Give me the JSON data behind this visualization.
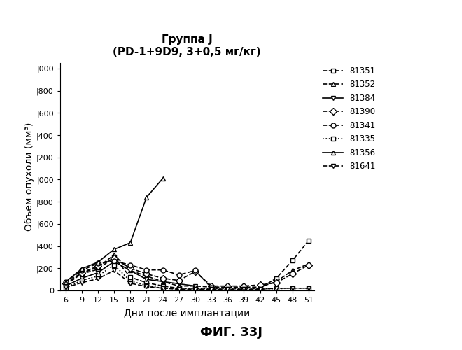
{
  "title_line1": "Группа J",
  "title_line2": "(PD-1+9D9, 3+0,5 мг/кг)",
  "xlabel": "Дни после имплантации",
  "ylabel": "Объем опухоли (мм³)",
  "caption": "ФИГ. 33J",
  "xticks": [
    6,
    9,
    12,
    15,
    18,
    21,
    24,
    27,
    30,
    33,
    36,
    39,
    42,
    45,
    48,
    51
  ],
  "ytick_values": [
    0,
    200,
    400,
    600,
    800,
    1000,
    1200,
    1400,
    1600,
    1800,
    2000
  ],
  "ytick_labels": [
    "0",
    "|200",
    "|400",
    "|600",
    "|800",
    "|000",
    "|200",
    "|400",
    "|600",
    "|800",
    "|000"
  ],
  "ylim": [
    0,
    2050
  ],
  "xlim": [
    5,
    52
  ],
  "series": [
    {
      "label": "81351",
      "marker": "s",
      "color": "#000000",
      "linestyle": "--",
      "x": [
        6,
        9,
        12,
        15,
        18,
        21,
        24,
        27,
        30,
        33,
        36,
        39,
        42,
        45,
        48,
        51
      ],
      "y": [
        50,
        150,
        190,
        300,
        120,
        70,
        40,
        20,
        20,
        20,
        20,
        20,
        20,
        110,
        270,
        450
      ]
    },
    {
      "label": "81352",
      "marker": "^",
      "color": "#000000",
      "linestyle": "--",
      "x": [
        6,
        9,
        12,
        15,
        18,
        21,
        24,
        27,
        30,
        33,
        36,
        39,
        42,
        45,
        48,
        51
      ],
      "y": [
        55,
        155,
        210,
        320,
        180,
        130,
        80,
        40,
        40,
        30,
        30,
        30,
        30,
        80,
        180,
        240
      ]
    },
    {
      "label": "81384",
      "marker": "v",
      "color": "#000000",
      "linestyle": "-",
      "x": [
        6,
        9,
        12,
        15,
        18,
        21,
        24,
        27,
        30
      ],
      "y": [
        40,
        110,
        160,
        260,
        180,
        100,
        80,
        60,
        40
      ]
    },
    {
      "label": "81390",
      "marker": "D",
      "color": "#000000",
      "linestyle": "--",
      "x": [
        6,
        9,
        12,
        15,
        18,
        21,
        24,
        27,
        30,
        33,
        36,
        39,
        42,
        45,
        48,
        51
      ],
      "y": [
        65,
        160,
        220,
        290,
        200,
        150,
        110,
        90,
        170,
        40,
        40,
        40,
        50,
        70,
        150,
        230
      ]
    },
    {
      "label": "81341",
      "marker": "o",
      "color": "#000000",
      "linestyle": "--",
      "x": [
        6,
        9,
        12,
        15,
        18,
        21,
        24,
        27,
        30,
        33
      ],
      "y": [
        75,
        180,
        245,
        265,
        230,
        185,
        185,
        140,
        180,
        25
      ]
    },
    {
      "label": "81335",
      "marker": "s",
      "color": "#000000",
      "linestyle": ":",
      "x": [
        6,
        9,
        12,
        15,
        18,
        21,
        24,
        27,
        30,
        33,
        36,
        39,
        42,
        45,
        48,
        51
      ],
      "y": [
        25,
        90,
        130,
        230,
        85,
        45,
        20,
        15,
        15,
        15,
        15,
        15,
        15,
        15,
        20,
        20
      ]
    },
    {
      "label": "81356",
      "marker": "^",
      "color": "#000000",
      "linestyle": "-",
      "x": [
        6,
        9,
        12,
        15,
        18,
        21,
        24
      ],
      "y": [
        75,
        195,
        255,
        370,
        430,
        840,
        1010
      ]
    },
    {
      "label": "81641",
      "marker": "v",
      "color": "#000000",
      "linestyle": "--",
      "x": [
        6,
        9,
        12,
        15,
        18,
        21,
        24,
        27,
        30,
        33,
        36,
        39,
        42,
        45,
        48,
        51
      ],
      "y": [
        25,
        70,
        105,
        180,
        65,
        35,
        20,
        10,
        10,
        10,
        10,
        10,
        10,
        20,
        20,
        20
      ]
    }
  ]
}
